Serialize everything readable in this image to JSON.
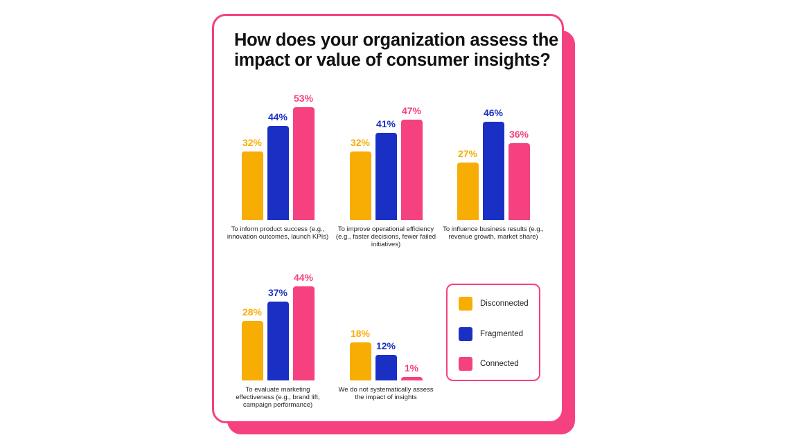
{
  "chart_data": {
    "type": "bar",
    "title": "How does your organization assess the impact or value of consumer insights?",
    "categories": [
      "To inform product success (e.g., innovation outcomes, launch KPIs)",
      "To improve operational efficiency (e.g., faster decisions, fewer failed initiatives)",
      "To influence business results (e.g., revenue growth, market share)",
      "To evaluate marketing effectiveness (e.g., brand lift, campaign performance)",
      "We do not systematically assess the impact of insights"
    ],
    "series": [
      {
        "name": "Disconnected",
        "color": "#f8ad05",
        "values": [
          32,
          32,
          27,
          28,
          18
        ]
      },
      {
        "name": "Fragmented",
        "color": "#1a30c4",
        "values": [
          44,
          41,
          46,
          37,
          12
        ]
      },
      {
        "name": "Connected",
        "color": "#f5417f",
        "values": [
          53,
          47,
          36,
          44,
          1
        ]
      }
    ],
    "value_suffix": "%",
    "legend_position": "bottom-right",
    "grid": false
  }
}
